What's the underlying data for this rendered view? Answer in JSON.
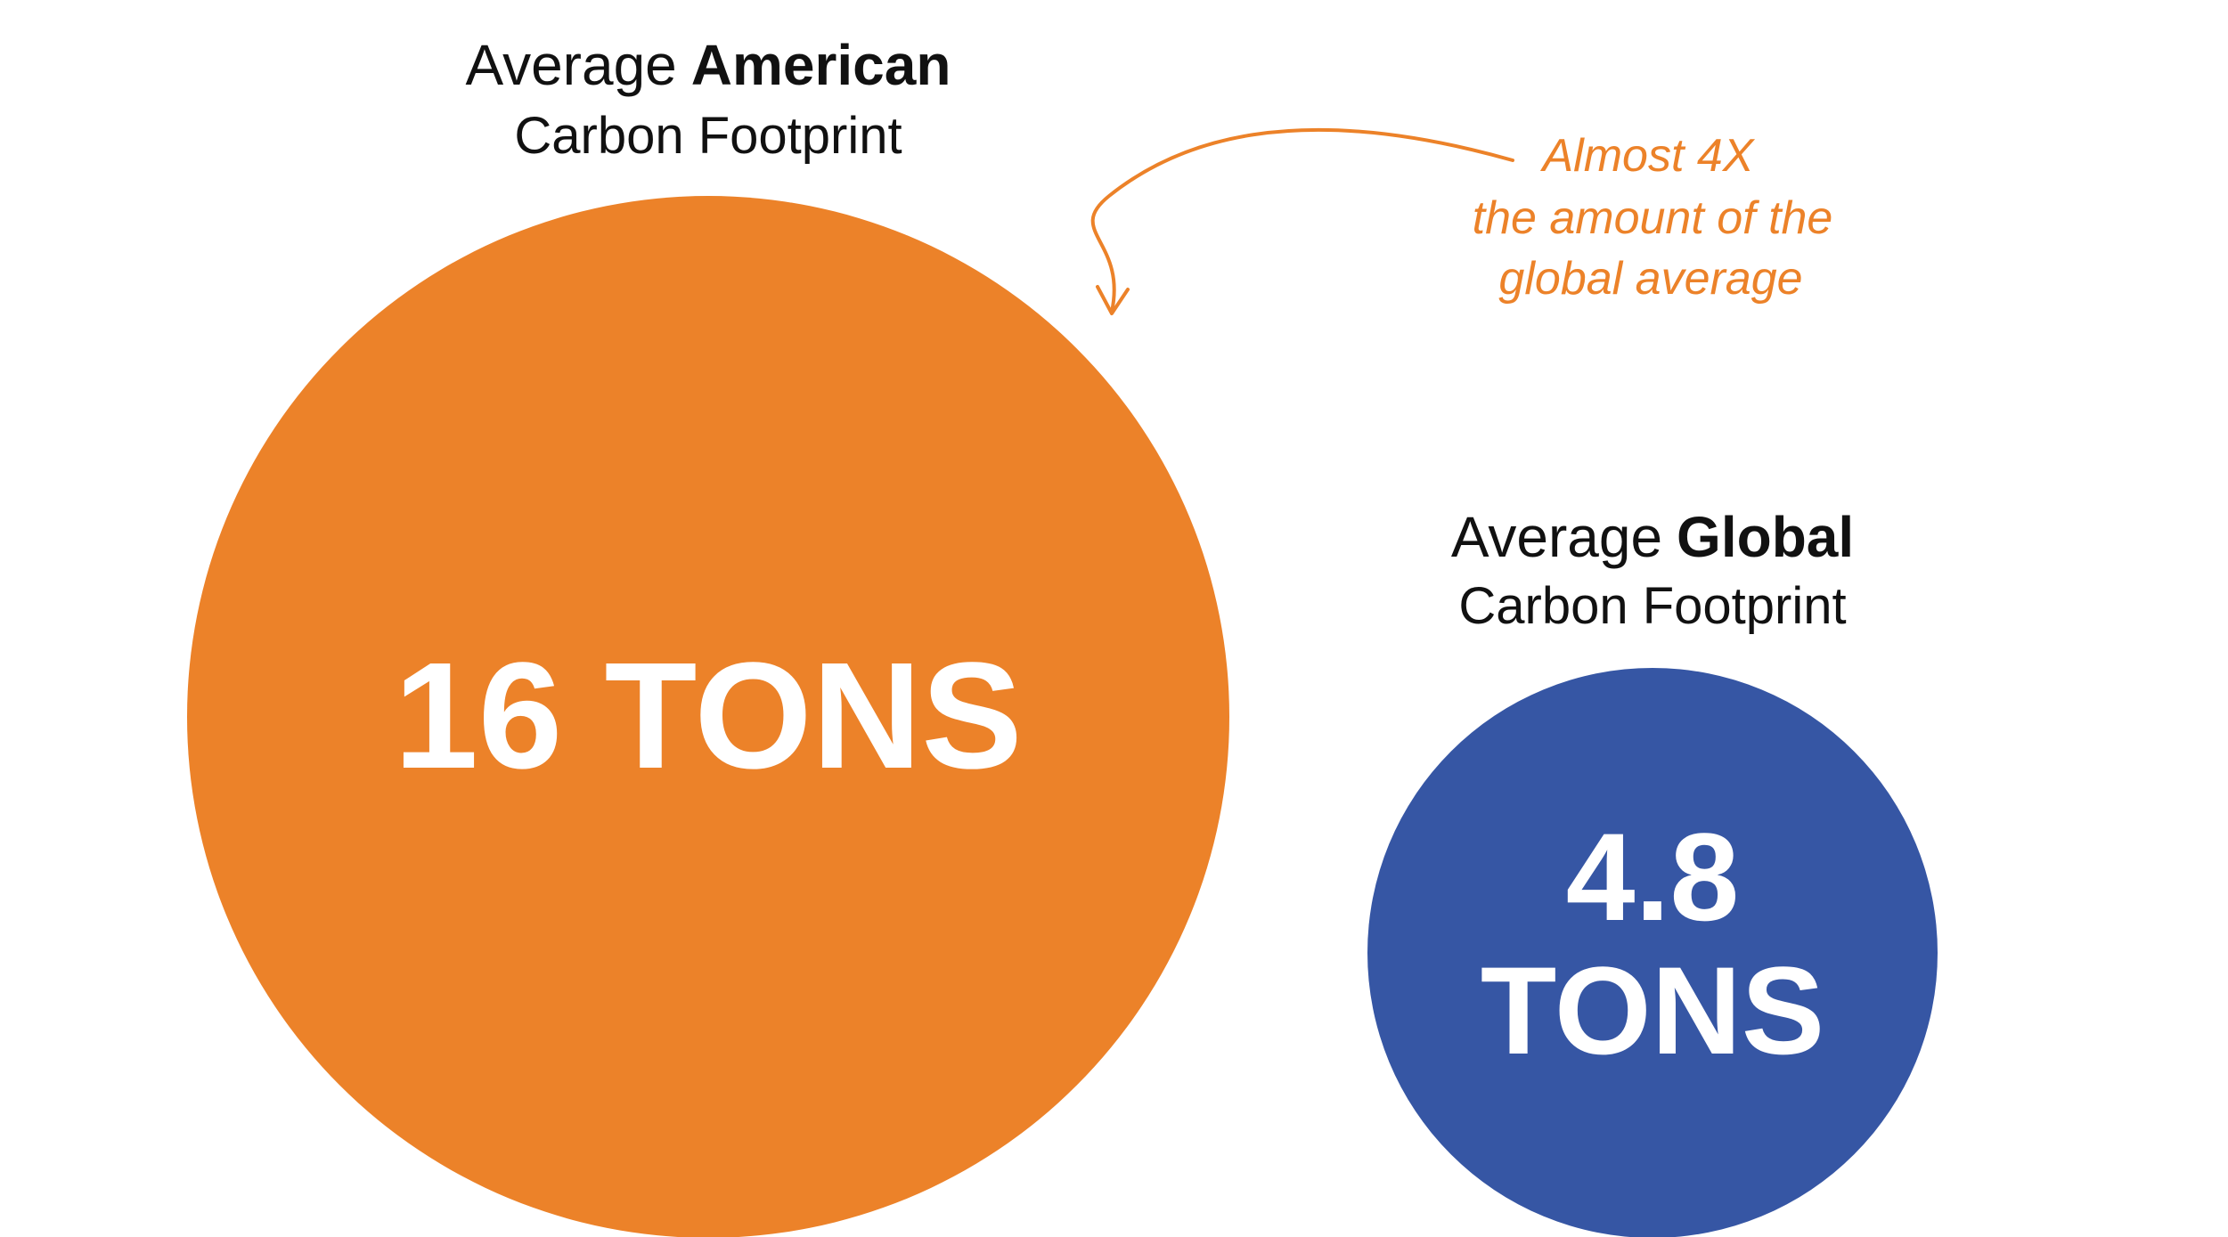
{
  "chart_data": {
    "type": "bubble",
    "unit": "TONS",
    "series": [
      {
        "name": "Average American Carbon Footprint",
        "label_prefix": "Average",
        "label_emphasis": "American",
        "label_line2": "Carbon Footprint",
        "value": 16,
        "value_text": "16 TONS",
        "color": "#ec8229"
      },
      {
        "name": "Average Global Carbon Footprint",
        "label_prefix": "Average",
        "label_emphasis": "Global",
        "label_line2": "Carbon Footprint",
        "value": 4.8,
        "value_line1": "4.8",
        "value_line2": "TONS",
        "color": "#3656a4"
      }
    ],
    "annotation": {
      "lines": [
        "Almost 4X",
        "the amount of the",
        "global average"
      ],
      "color": "#ec8229",
      "points_to": "Average American Carbon Footprint"
    }
  }
}
